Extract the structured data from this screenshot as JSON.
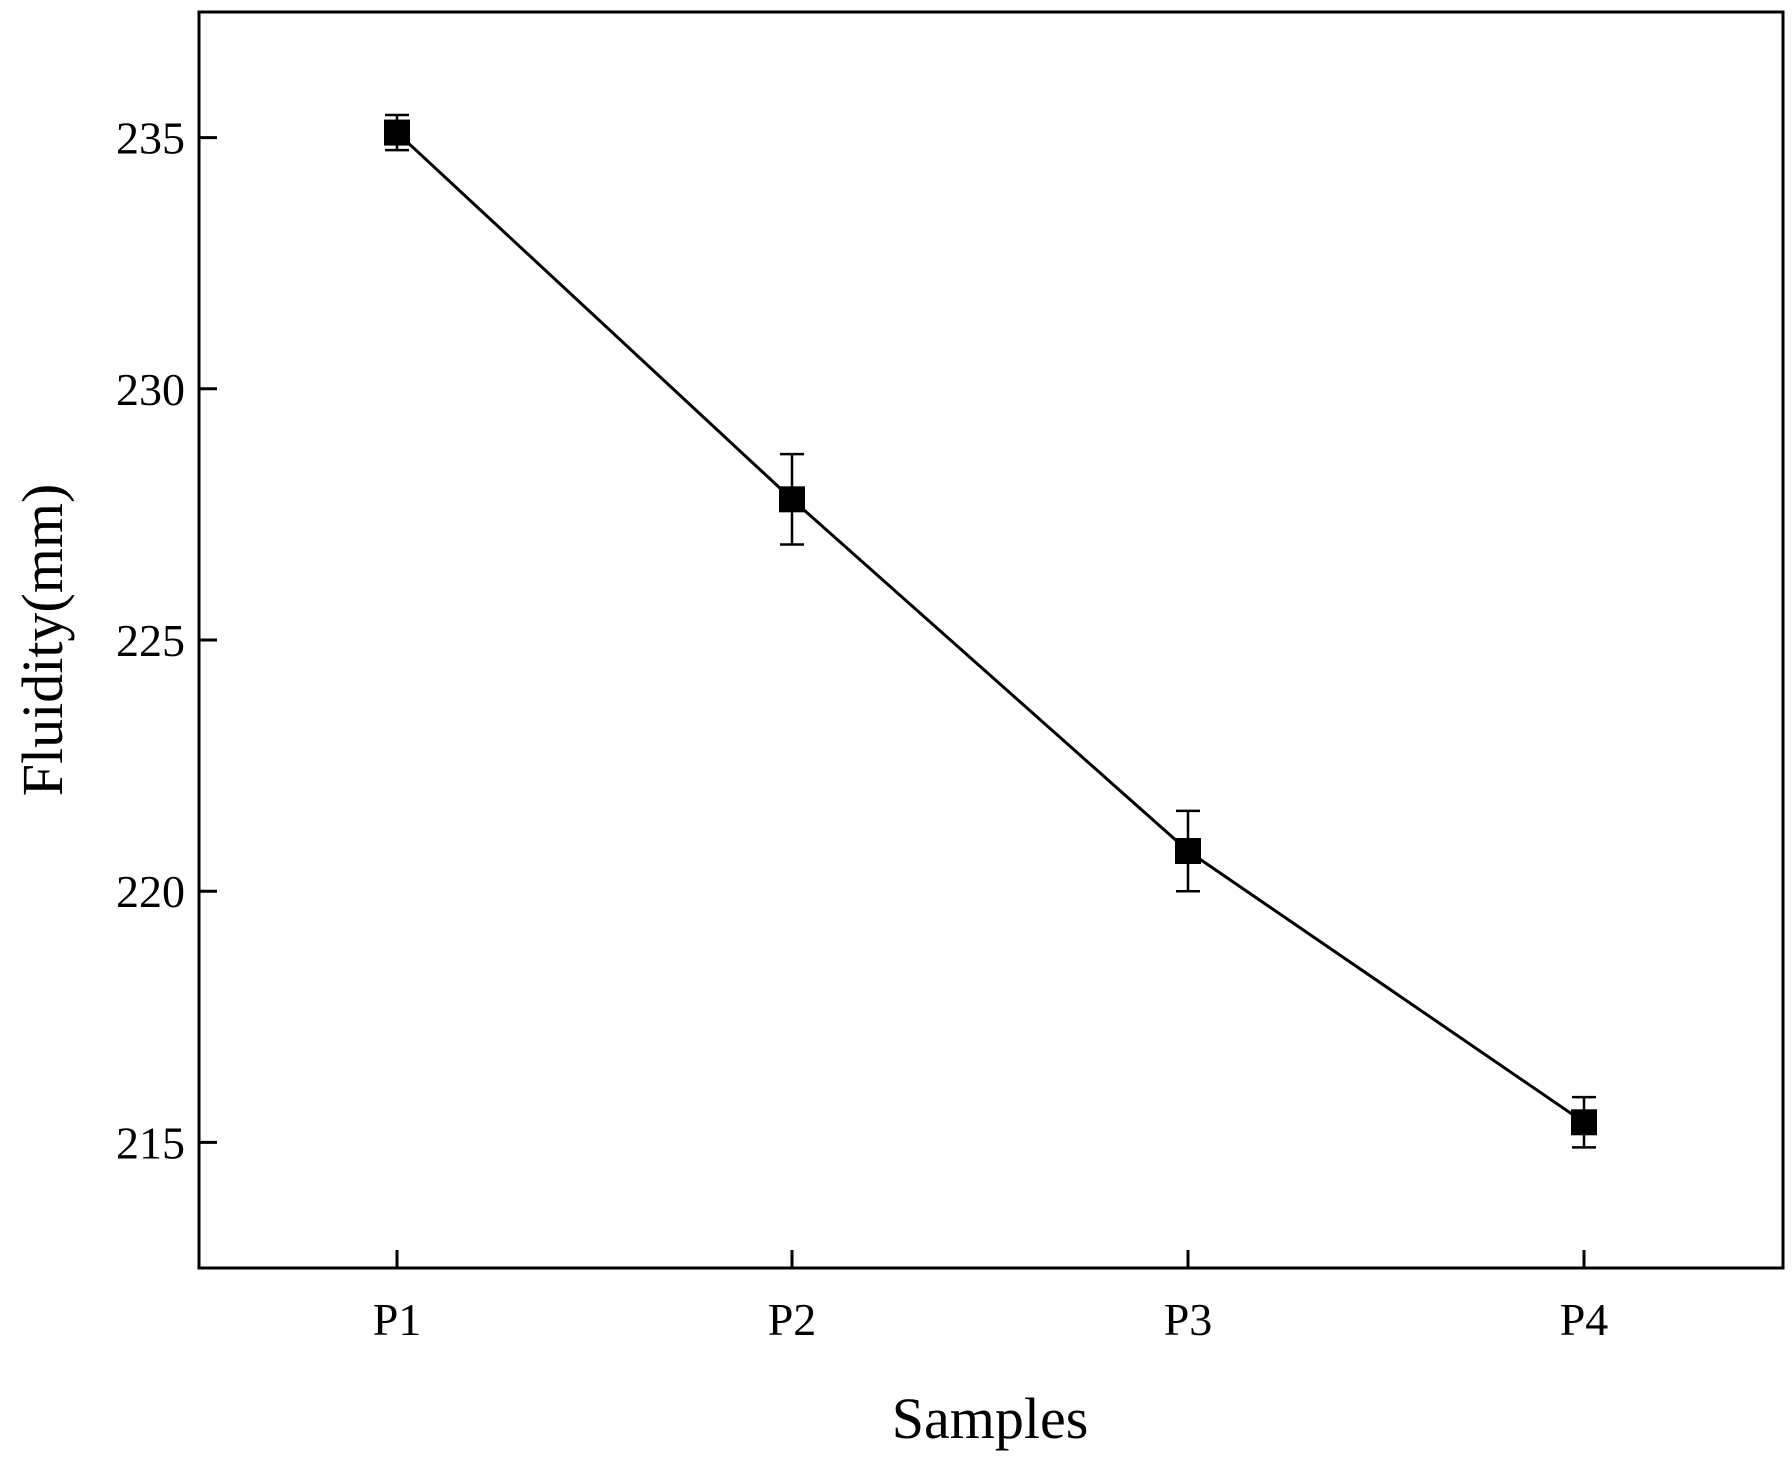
{
  "chart_data": {
    "type": "line",
    "title": "",
    "xlabel": "Samples",
    "ylabel": "Fluidity(mm)",
    "categories": [
      "P1",
      "P2",
      "P3",
      "P4"
    ],
    "series": [
      {
        "values": [
          235.1,
          227.8,
          220.8,
          215.4
        ],
        "errors": [
          0.35,
          0.9,
          0.8,
          0.5
        ]
      }
    ],
    "ylim": [
      212.5,
      237.5
    ],
    "yticks": [
      215,
      220,
      225,
      230,
      235
    ],
    "grid": false,
    "legend": "none",
    "marker": "square",
    "color": "#000000"
  }
}
